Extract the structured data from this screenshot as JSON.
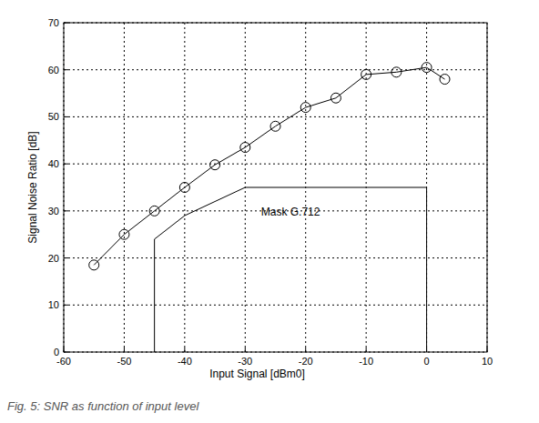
{
  "chart_data": {
    "type": "line",
    "x_label": "Input Signal [dBm0]",
    "y_label": "Signal Noise Ratio [dB]",
    "caption": "Fig. 5: SNR as function of input level",
    "xlim": [
      -60,
      10
    ],
    "xticks": [
      -60,
      -50,
      -40,
      -30,
      -20,
      -10,
      0,
      10
    ],
    "ylim": [
      0,
      70
    ],
    "yticks": [
      0,
      10,
      20,
      30,
      40,
      50,
      60,
      70
    ],
    "grid": true,
    "series": [
      {
        "color": "#000000",
        "marker": "circle",
        "line_style": "solid",
        "x": [
          -55,
          -50,
          -45,
          -40,
          -35,
          -30,
          -25,
          -20,
          -15,
          -10,
          -5,
          0,
          3
        ],
        "values": [
          18.5,
          25,
          30,
          35,
          39.8,
          43.5,
          48,
          52,
          54,
          59,
          59.5,
          60.5,
          58
        ]
      },
      {
        "name": "Mask G.712",
        "color": "#000000",
        "marker": "none",
        "line_style": "solid",
        "x": [
          -45,
          -45,
          -40,
          -30,
          0,
          0
        ],
        "values": [
          0,
          24,
          29,
          35,
          35,
          0
        ]
      }
    ]
  }
}
